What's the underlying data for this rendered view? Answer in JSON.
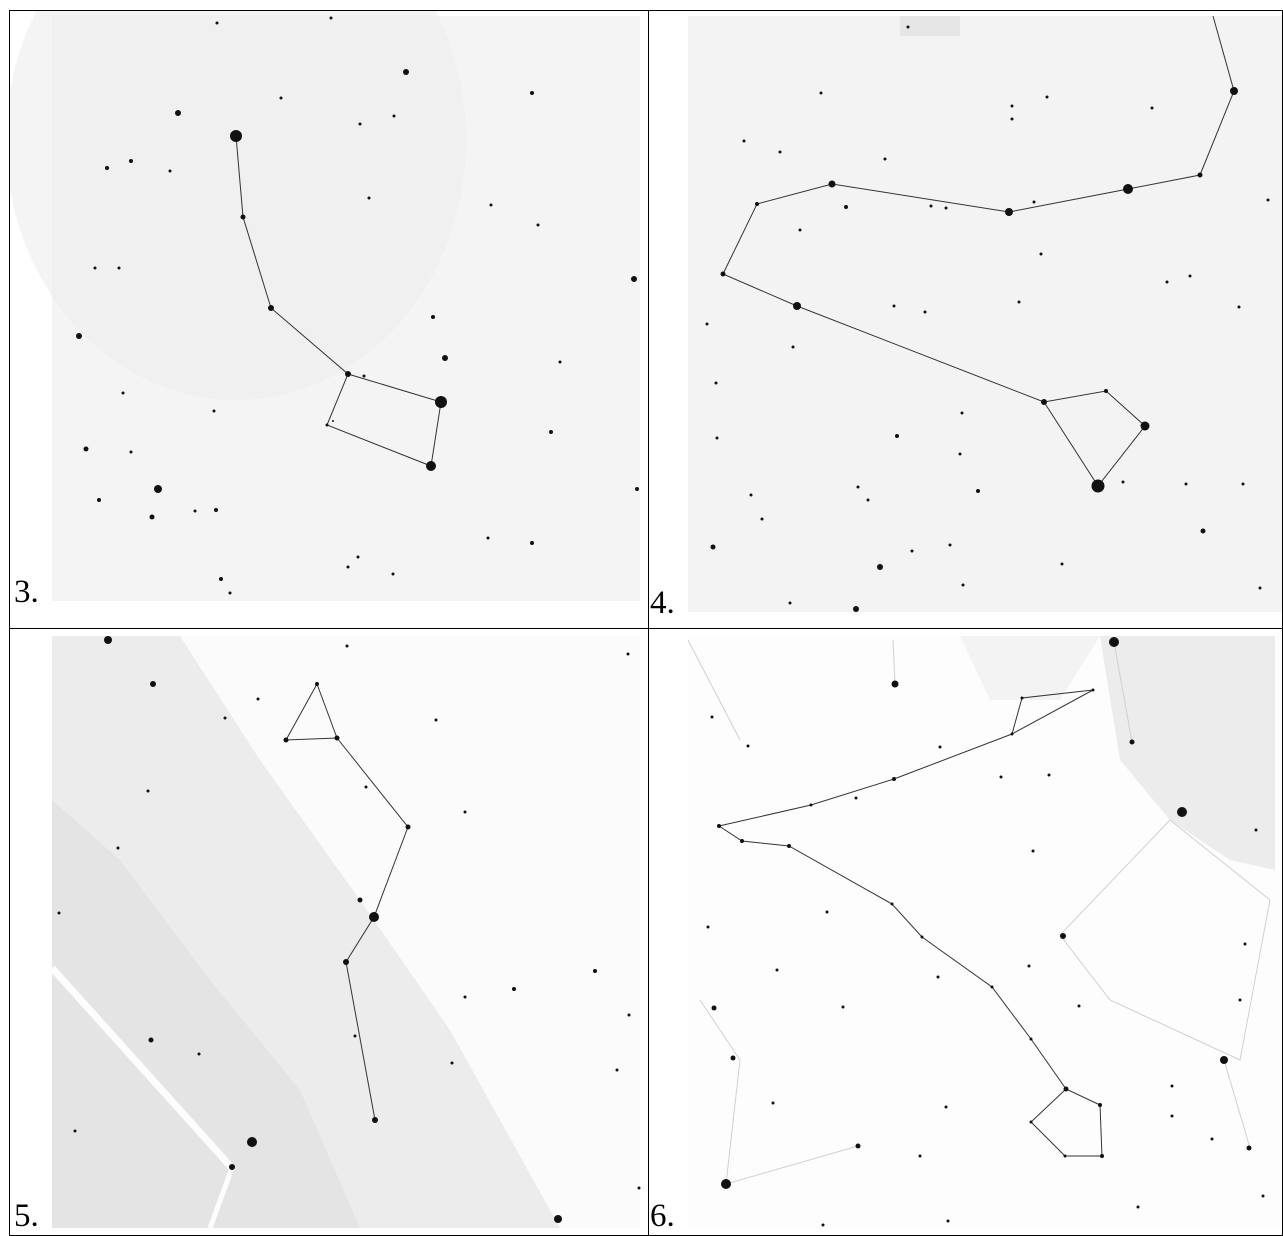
{
  "panels": [
    {
      "label": "3."
    },
    {
      "label": "4."
    },
    {
      "label": "5."
    },
    {
      "label": "6."
    }
  ],
  "colors": {
    "background": "#ffffff",
    "grid_line": "#000000",
    "star": "#111111",
    "constellation_line": "#333333",
    "texture": "#f2f2f2",
    "milky_way": "#e9e9e9"
  }
}
